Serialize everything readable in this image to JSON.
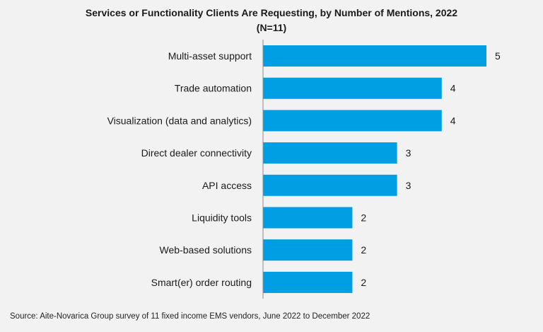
{
  "chart_data": {
    "type": "bar",
    "orientation": "horizontal",
    "title": "Services or Functionality Clients Are Requesting, by Number of Mentions, 2022",
    "subtitle": "(N=11)",
    "categories": [
      "Multi-asset support",
      "Trade automation",
      "Visualization (data and analytics)",
      "Direct dealer connectivity",
      "API access",
      "Liquidity tools",
      "Web-based solutions",
      "Smart(er) order routing"
    ],
    "values": [
      5,
      4,
      4,
      3,
      3,
      2,
      2,
      2
    ],
    "xlim": [
      0,
      5
    ],
    "bar_color": "#009fe3",
    "grid": false,
    "legend": "none"
  },
  "source": "Source: Aite-Novarica Group survey of 11 fixed income EMS vendors, June 2022 to December 2022"
}
